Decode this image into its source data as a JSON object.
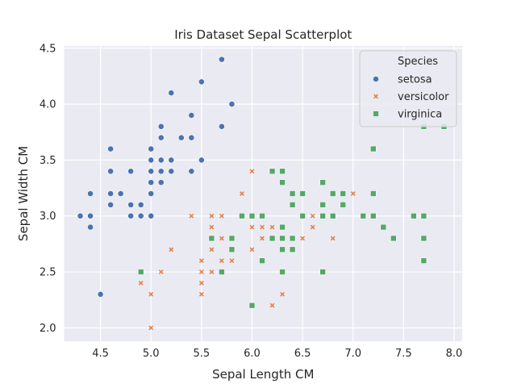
{
  "chart_data": {
    "type": "scatter",
    "title": "Iris Dataset Sepal Scatterplot",
    "xlabel": "Sepal Length CM",
    "ylabel": "Sepal Width CM",
    "xlim": [
      4.14,
      8.08
    ],
    "ylim": [
      1.88,
      4.52
    ],
    "xticks": [
      "4.5",
      "5.0",
      "5.5",
      "6.0",
      "6.5",
      "7.0",
      "7.5",
      "8.0"
    ],
    "yticks": [
      "2.0",
      "2.5",
      "3.0",
      "3.5",
      "4.0",
      "4.5"
    ],
    "grid": true,
    "background": "#eaeaf2",
    "legend": {
      "title": "Species",
      "placement": "top-right"
    },
    "series": [
      {
        "name": "setosa",
        "marker": "circle",
        "color": "#4c72b0",
        "points": [
          [
            5.7,
            4.4
          ],
          [
            5.5,
            4.2
          ],
          [
            5.2,
            4.1
          ],
          [
            5.8,
            4.0
          ],
          [
            5.4,
            3.9
          ],
          [
            5.1,
            3.8
          ],
          [
            5.7,
            3.8
          ],
          [
            5.1,
            3.7
          ],
          [
            5.3,
            3.7
          ],
          [
            5.4,
            3.7
          ],
          [
            4.6,
            3.6
          ],
          [
            5.0,
            3.6
          ],
          [
            4.6,
            3.4
          ],
          [
            4.8,
            3.4
          ],
          [
            5.0,
            3.4
          ],
          [
            5.1,
            3.4
          ],
          [
            5.2,
            3.4
          ],
          [
            5.4,
            3.4
          ],
          [
            5.0,
            3.5
          ],
          [
            5.1,
            3.5
          ],
          [
            5.2,
            3.5
          ],
          [
            5.5,
            3.5
          ],
          [
            5.0,
            3.3
          ],
          [
            5.1,
            3.3
          ],
          [
            4.4,
            3.2
          ],
          [
            4.6,
            3.2
          ],
          [
            4.7,
            3.2
          ],
          [
            5.0,
            3.2
          ],
          [
            4.6,
            3.1
          ],
          [
            4.8,
            3.1
          ],
          [
            4.9,
            3.1
          ],
          [
            4.3,
            3.0
          ],
          [
            4.4,
            3.0
          ],
          [
            4.8,
            3.0
          ],
          [
            4.9,
            3.0
          ],
          [
            5.0,
            3.0
          ],
          [
            4.4,
            2.9
          ],
          [
            4.5,
            2.3
          ]
        ]
      },
      {
        "name": "versicolor",
        "marker": "x",
        "color": "#dd8452",
        "points": [
          [
            6.0,
            3.4
          ],
          [
            5.9,
            3.2
          ],
          [
            6.3,
            3.3
          ],
          [
            7.0,
            3.2
          ],
          [
            5.4,
            3.0
          ],
          [
            5.6,
            3.0
          ],
          [
            5.7,
            3.0
          ],
          [
            6.0,
            3.0
          ],
          [
            6.6,
            3.0
          ],
          [
            6.7,
            3.0
          ],
          [
            5.6,
            2.9
          ],
          [
            6.0,
            2.9
          ],
          [
            6.1,
            2.9
          ],
          [
            6.2,
            2.9
          ],
          [
            6.6,
            2.9
          ],
          [
            5.7,
            2.8
          ],
          [
            6.1,
            2.8
          ],
          [
            6.5,
            2.8
          ],
          [
            6.8,
            2.8
          ],
          [
            5.2,
            2.7
          ],
          [
            5.6,
            2.7
          ],
          [
            5.8,
            2.7
          ],
          [
            6.0,
            2.7
          ],
          [
            5.5,
            2.6
          ],
          [
            5.7,
            2.6
          ],
          [
            5.8,
            2.6
          ],
          [
            5.1,
            2.5
          ],
          [
            5.5,
            2.5
          ],
          [
            5.6,
            2.5
          ],
          [
            4.9,
            2.4
          ],
          [
            5.5,
            2.4
          ],
          [
            5.0,
            2.3
          ],
          [
            5.5,
            2.3
          ],
          [
            6.3,
            2.3
          ],
          [
            6.2,
            2.2
          ],
          [
            5.0,
            2.0
          ]
        ]
      },
      {
        "name": "virginica",
        "marker": "square",
        "color": "#55a868",
        "points": [
          [
            7.7,
            3.8
          ],
          [
            7.9,
            3.8
          ],
          [
            7.2,
            3.6
          ],
          [
            6.2,
            3.4
          ],
          [
            6.3,
            3.4
          ],
          [
            6.3,
            3.3
          ],
          [
            6.7,
            3.3
          ],
          [
            6.4,
            3.2
          ],
          [
            6.5,
            3.2
          ],
          [
            6.8,
            3.2
          ],
          [
            6.9,
            3.2
          ],
          [
            7.2,
            3.2
          ],
          [
            6.4,
            3.1
          ],
          [
            6.7,
            3.1
          ],
          [
            6.9,
            3.1
          ],
          [
            5.9,
            3.0
          ],
          [
            6.0,
            3.0
          ],
          [
            6.1,
            3.0
          ],
          [
            6.5,
            3.0
          ],
          [
            6.7,
            3.0
          ],
          [
            6.8,
            3.0
          ],
          [
            7.1,
            3.0
          ],
          [
            7.2,
            3.0
          ],
          [
            7.6,
            3.0
          ],
          [
            7.7,
            3.0
          ],
          [
            6.3,
            2.9
          ],
          [
            7.3,
            2.9
          ],
          [
            5.6,
            2.8
          ],
          [
            5.8,
            2.8
          ],
          [
            6.2,
            2.8
          ],
          [
            6.3,
            2.8
          ],
          [
            6.4,
            2.8
          ],
          [
            7.4,
            2.8
          ],
          [
            7.7,
            2.8
          ],
          [
            5.8,
            2.7
          ],
          [
            6.3,
            2.7
          ],
          [
            6.4,
            2.7
          ],
          [
            6.1,
            2.6
          ],
          [
            7.7,
            2.6
          ],
          [
            4.9,
            2.5
          ],
          [
            5.7,
            2.5
          ],
          [
            6.3,
            2.5
          ],
          [
            6.7,
            2.5
          ],
          [
            6.0,
            2.2
          ]
        ]
      }
    ]
  }
}
